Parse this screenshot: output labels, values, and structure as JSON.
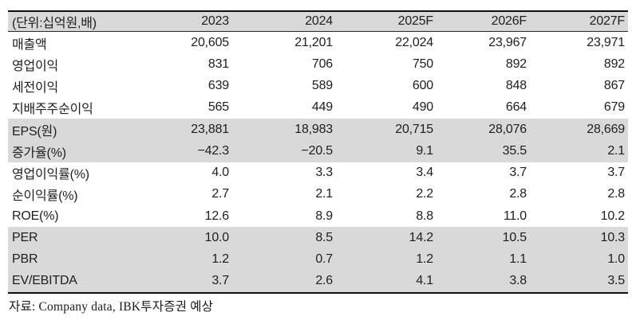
{
  "table": {
    "unit_label": "(단위:십억원,배)",
    "columns": [
      "2023",
      "2024",
      "2025F",
      "2026F",
      "2027F"
    ],
    "rows": [
      {
        "label": "매출액",
        "values": [
          "20,605",
          "21,201",
          "22,024",
          "23,967",
          "23,971"
        ],
        "shaded": false
      },
      {
        "label": "영업이익",
        "values": [
          "831",
          "706",
          "750",
          "892",
          "892"
        ],
        "shaded": false
      },
      {
        "label": "세전이익",
        "values": [
          "639",
          "589",
          "600",
          "848",
          "867"
        ],
        "shaded": false
      },
      {
        "label": "지배주주순이익",
        "values": [
          "565",
          "449",
          "490",
          "664",
          "679"
        ],
        "shaded": false
      },
      {
        "label": "EPS(원)",
        "values": [
          "23,881",
          "18,983",
          "20,715",
          "28,076",
          "28,669"
        ],
        "shaded": true
      },
      {
        "label": "증가율(%)",
        "values": [
          "−42.3",
          "−20.5",
          "9.1",
          "35.5",
          "2.1"
        ],
        "shaded": true
      },
      {
        "label": "영업이익률(%)",
        "values": [
          "4.0",
          "3.3",
          "3.4",
          "3.7",
          "3.7"
        ],
        "shaded": false
      },
      {
        "label": "순이익률(%)",
        "values": [
          "2.7",
          "2.1",
          "2.2",
          "2.8",
          "2.8"
        ],
        "shaded": false
      },
      {
        "label": "ROE(%)",
        "values": [
          "12.6",
          "8.9",
          "8.8",
          "11.0",
          "10.2"
        ],
        "shaded": false
      },
      {
        "label": "PER",
        "values": [
          "10.0",
          "8.5",
          "14.2",
          "10.5",
          "10.3"
        ],
        "shaded": true
      },
      {
        "label": "PBR",
        "values": [
          "1.2",
          "0.7",
          "1.2",
          "1.1",
          "1.0"
        ],
        "shaded": true
      },
      {
        "label": "EV/EBITDA",
        "values": [
          "3.7",
          "2.6",
          "4.1",
          "3.8",
          "3.5"
        ],
        "shaded": true
      }
    ],
    "source": "자료: Company data, IBK투자증권 예상"
  },
  "colors": {
    "shaded_row_bg": "#d9d9d9",
    "text": "#1e1e1e",
    "border": "#0f0f0f",
    "header_rule": "#2a2a2a"
  }
}
